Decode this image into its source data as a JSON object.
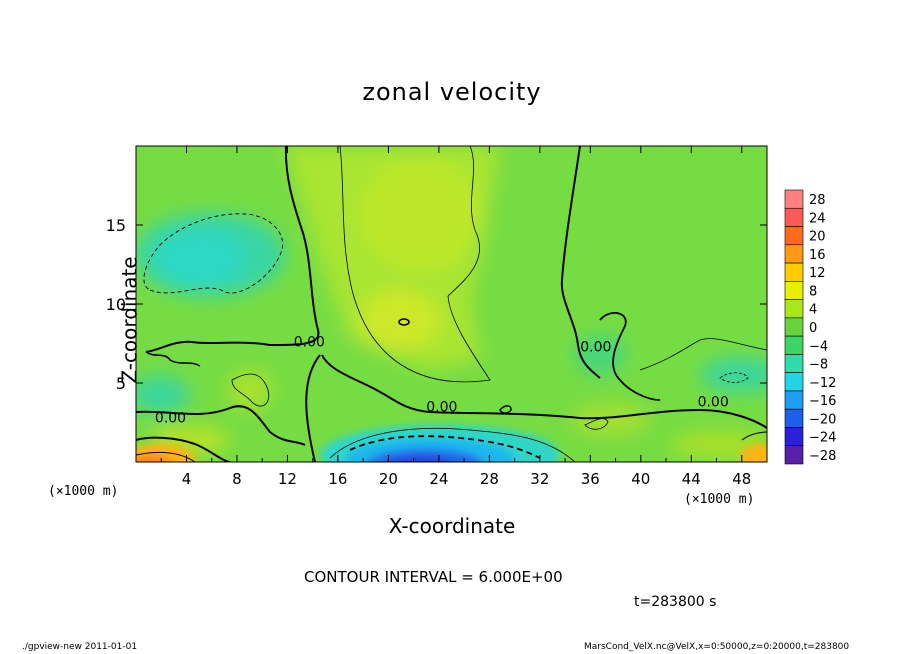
{
  "chart_data": {
    "type": "heatmap",
    "title": "zonal velocity",
    "xlabel": "X-coordinate",
    "ylabel": "Z-coordinate",
    "x_unit_label": "(×1000 m)",
    "xlim": [
      0,
      50
    ],
    "ylim": [
      0,
      20
    ],
    "x_ticks": [
      4,
      8,
      12,
      16,
      20,
      24,
      28,
      32,
      36,
      40,
      44,
      48
    ],
    "y_ticks": [
      5,
      10,
      15
    ],
    "colorbar_levels": [
      28,
      24,
      20,
      16,
      12,
      8,
      4,
      0,
      -4,
      -8,
      -12,
      -16,
      -20,
      -24,
      -28
    ],
    "contour_labels": [
      {
        "text": "0.00",
        "x": 12.5,
        "y": 7.3
      },
      {
        "text": "0.00",
        "x": 23.0,
        "y": 3.2
      },
      {
        "text": "0.00",
        "x": 35.2,
        "y": 7.0
      },
      {
        "text": "0.00",
        "x": 44.5,
        "y": 3.5
      },
      {
        "text": "0.00",
        "x": 1.5,
        "y": 2.5
      }
    ],
    "contour_interval_text": "CONTOUR INTERVAL = 6.000E+00",
    "time_text": "t=283800 s",
    "annotations": {
      "footer_left": "./gpview-new   2011-01-01",
      "footer_right": "MarsCond_VelX.nc@VelX,x=0:50000,z=0:20000,t=283800"
    }
  },
  "colors": {
    "background_field": "#7be046",
    "colorbar": [
      "#ff8080",
      "#ff5a5a",
      "#ff6b1a",
      "#ff9a14",
      "#ffcc00",
      "#e6f000",
      "#a8e81a",
      "#66d43a",
      "#3ed463",
      "#2fdca8",
      "#22d4e4",
      "#1f9ef0",
      "#1f5ee8",
      "#2b22d8",
      "#5a1fa8"
    ]
  }
}
